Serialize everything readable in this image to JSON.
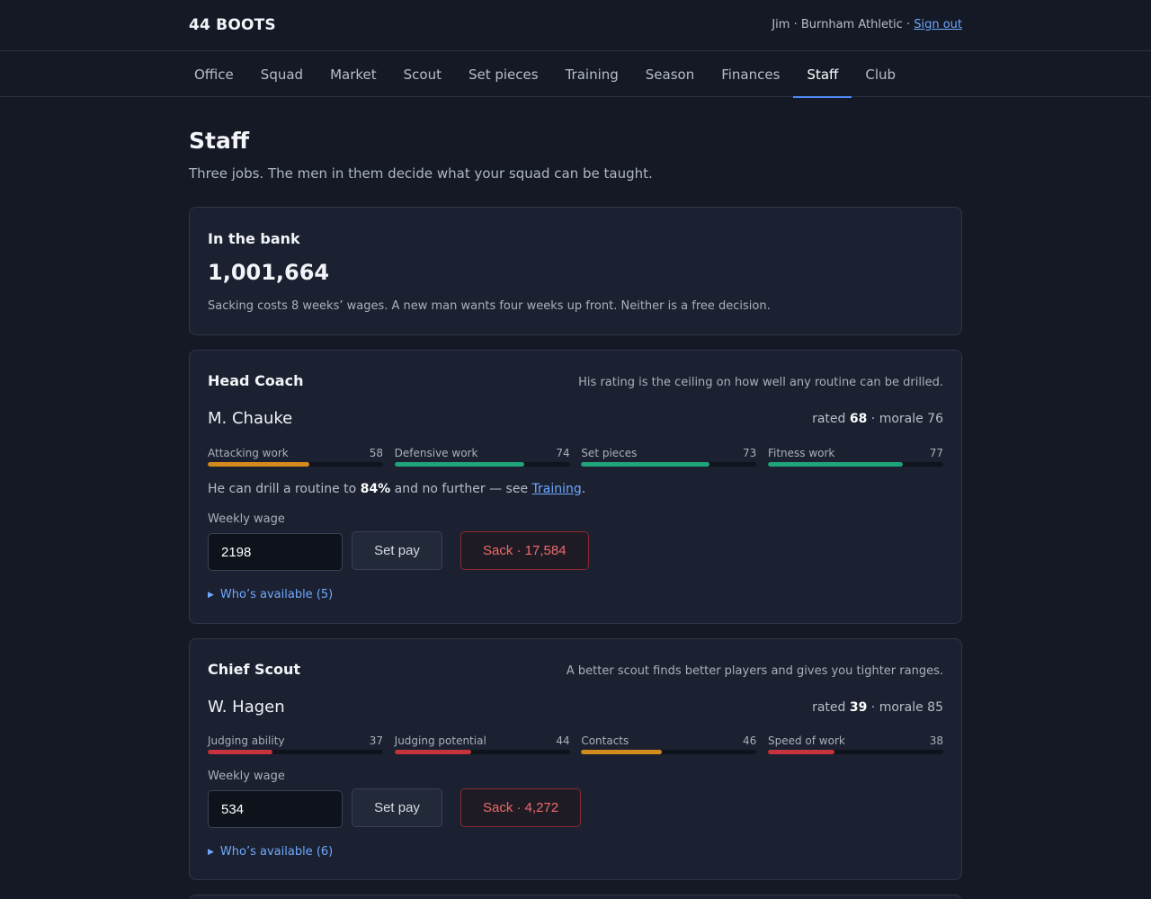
{
  "header": {
    "brand": "44 BOOTS",
    "user": "Jim · Burnham Athletic · ",
    "signout": "Sign out"
  },
  "nav": {
    "items": [
      {
        "label": "Office",
        "active": false
      },
      {
        "label": "Squad",
        "active": false
      },
      {
        "label": "Market",
        "active": false
      },
      {
        "label": "Scout",
        "active": false
      },
      {
        "label": "Set pieces",
        "active": false
      },
      {
        "label": "Training",
        "active": false
      },
      {
        "label": "Season",
        "active": false
      },
      {
        "label": "Finances",
        "active": false
      },
      {
        "label": "Staff",
        "active": true
      },
      {
        "label": "Club",
        "active": false
      }
    ]
  },
  "page": {
    "title": "Staff",
    "subtitle": "Three jobs. The men in them decide what your squad can be taught."
  },
  "bank": {
    "title": "In the bank",
    "amount": "1,001,664",
    "note": "Sacking costs 8 weeks’ wages. A new man wants four weeks up front. Neither is a free decision."
  },
  "colors": {
    "good": "#1fa37a",
    "mid": "#d58a1c",
    "bad": "#c7333c",
    "accent": "#4f8cff"
  },
  "coach": {
    "role": "Head Coach",
    "note": "His rating is the ceiling on how well any routine can be drilled.",
    "name": "M. Chauke",
    "rated_prefix": "rated ",
    "rating": "68",
    "morale_text": " · morale 76",
    "attrs": [
      {
        "label": "Attacking work",
        "value": 58,
        "level": "mid"
      },
      {
        "label": "Defensive work",
        "value": 74,
        "level": "good"
      },
      {
        "label": "Set pieces",
        "value": 73,
        "level": "good"
      },
      {
        "label": "Fitness work",
        "value": 77,
        "level": "good"
      }
    ],
    "ceiling_prefix": "He can drill a routine to ",
    "ceiling_value": "84%",
    "ceiling_mid": " and no further — see ",
    "ceiling_link": "Training",
    "ceiling_suffix": ".",
    "wage_label": "Weekly wage",
    "wage_value": "2198",
    "set_pay": "Set pay",
    "sack": "Sack · 17,584",
    "available": "Who’s available (5)"
  },
  "scout": {
    "role": "Chief Scout",
    "note": "A better scout finds better players and gives you tighter ranges.",
    "name": "W. Hagen",
    "rated_prefix": "rated ",
    "rating": "39",
    "morale_text": " · morale 85",
    "attrs": [
      {
        "label": "Judging ability",
        "value": 37,
        "level": "bad"
      },
      {
        "label": "Judging potential",
        "value": 44,
        "level": "bad"
      },
      {
        "label": "Contacts",
        "value": 46,
        "level": "mid"
      },
      {
        "label": "Speed of work",
        "value": 38,
        "level": "bad"
      }
    ],
    "wage_label": "Weekly wage",
    "wage_value": "534",
    "set_pay": "Set pay",
    "sack": "Sack · 4,272",
    "available": "Who’s available (6)"
  }
}
